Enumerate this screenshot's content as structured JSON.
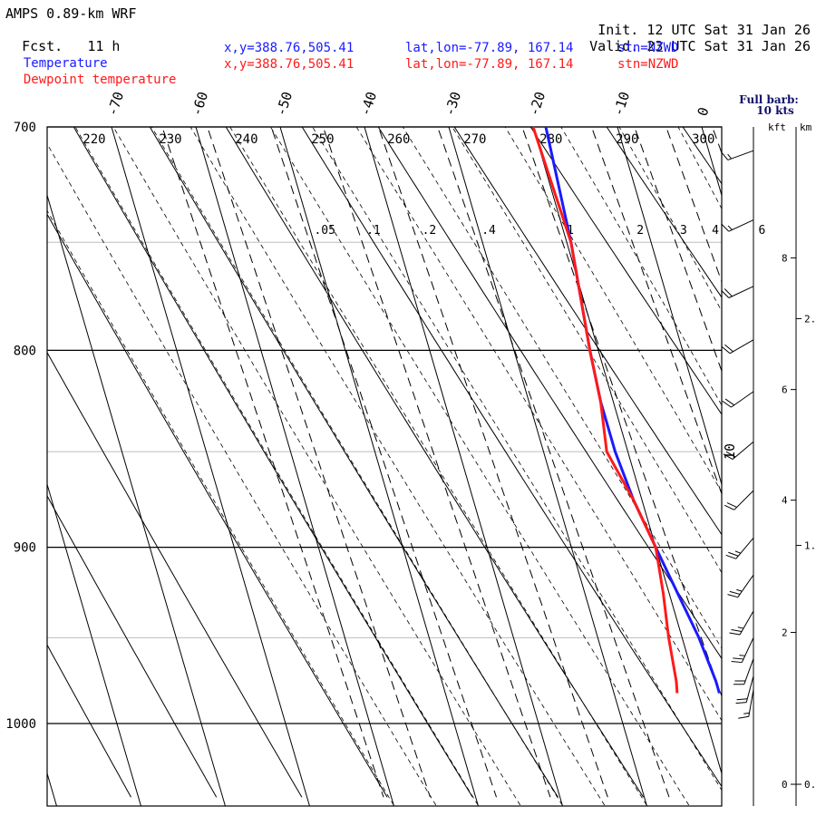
{
  "header": {
    "title": "AMPS 0.89-km WRF",
    "fcst_label": "Fcst.",
    "fcst_value": "11 h",
    "init_label": "Init.",
    "init_value": "12 UTC Sat 31 Jan 26",
    "valid_label": "Valid.",
    "valid_value": "23 UTC Sat 31 Jan 26"
  },
  "legend": [
    {
      "name": "Temperature",
      "xy": "x,y=388.76,505.41",
      "latlon": "lat,lon=-77.89, 167.14",
      "stn": "stn=NZWD",
      "color": "#1a1aff"
    },
    {
      "name": "Dewpoint temperature",
      "xy": "x,y=388.76,505.41",
      "latlon": "lat,lon=-77.89, 167.14",
      "stn": "stn=NZWD",
      "color": "#ff1a1a"
    }
  ],
  "barb_legend": {
    "line1": "Full barb:",
    "line2": "10 kts"
  },
  "height_axis": {
    "kft_label": "kft",
    "km_label": "km",
    "kft_ticks": [
      {
        "v": 8,
        "p": 757
      },
      {
        "v": 6,
        "p": 819
      },
      {
        "v": 4,
        "p": 875
      },
      {
        "v": 2,
        "p": 947
      },
      {
        "v": 0,
        "p": 1037
      }
    ],
    "km_ticks": [
      {
        "t": "2.",
        "p": 785
      },
      {
        "t": "1.",
        "p": 899
      },
      {
        "t": "0.",
        "p": 1037
      }
    ]
  },
  "chart_data": {
    "type": "line",
    "title": "AMPS 0.89-km WRF",
    "diagram": "skew-T log-P",
    "pressure_ticks": [
      700,
      800,
      900,
      1000
    ],
    "gray_isobars": [
      750,
      850,
      950
    ],
    "ylim": [
      1040,
      700
    ],
    "y_scale": "log",
    "temperature_ticks_c": [
      -70,
      -60,
      -50,
      -40,
      -30,
      -20,
      -10,
      0
    ],
    "isotherm_label_1": "10",
    "theta_labels_k": [
      220,
      230,
      240,
      250,
      260,
      270,
      280,
      290,
      300
    ],
    "mixing_ratio_labels": [
      ".05",
      ".1",
      ".2",
      ".4",
      "1",
      "2",
      "3",
      "4",
      "6"
    ],
    "series": [
      {
        "name": "Temperature",
        "color": "#1a1aff",
        "points": [
          [
            700,
            -18.5
          ],
          [
            750,
            -19.5
          ],
          [
            800,
            -21.0
          ],
          [
            825,
            -21.5
          ],
          [
            850,
            -21.5
          ],
          [
            875,
            -21.0
          ],
          [
            900,
            -20.0
          ],
          [
            925,
            -19.0
          ],
          [
            950,
            -18.0
          ],
          [
            975,
            -17.5
          ],
          [
            982,
            -17.5
          ]
        ]
      },
      {
        "name": "Dewpoint temperature",
        "color": "#ff1a1a",
        "points": [
          [
            700,
            -20.0
          ],
          [
            750,
            -19.5
          ],
          [
            800,
            -21.0
          ],
          [
            825,
            -21.5
          ],
          [
            850,
            -22.5
          ],
          [
            875,
            -21.0
          ],
          [
            900,
            -20.0
          ],
          [
            925,
            -20.7
          ],
          [
            950,
            -21.6
          ],
          [
            975,
            -22.2
          ],
          [
            982,
            -22.5
          ]
        ]
      }
    ],
    "wind_barbs": [
      {
        "p": 710,
        "dir_deg": 250,
        "speed_kt": 15
      },
      {
        "p": 740,
        "dir_deg": 245,
        "speed_kt": 15
      },
      {
        "p": 770,
        "dir_deg": 245,
        "speed_kt": 20
      },
      {
        "p": 795,
        "dir_deg": 240,
        "speed_kt": 20
      },
      {
        "p": 820,
        "dir_deg": 235,
        "speed_kt": 20
      },
      {
        "p": 845,
        "dir_deg": 230,
        "speed_kt": 20
      },
      {
        "p": 870,
        "dir_deg": 225,
        "speed_kt": 20
      },
      {
        "p": 895,
        "dir_deg": 220,
        "speed_kt": 25
      },
      {
        "p": 915,
        "dir_deg": 215,
        "speed_kt": 25
      },
      {
        "p": 935,
        "dir_deg": 210,
        "speed_kt": 25
      },
      {
        "p": 950,
        "dir_deg": 205,
        "speed_kt": 25
      },
      {
        "p": 962,
        "dir_deg": 200,
        "speed_kt": 20
      },
      {
        "p": 972,
        "dir_deg": 195,
        "speed_kt": 20
      },
      {
        "p": 980,
        "dir_deg": 190,
        "speed_kt": 15
      }
    ]
  }
}
